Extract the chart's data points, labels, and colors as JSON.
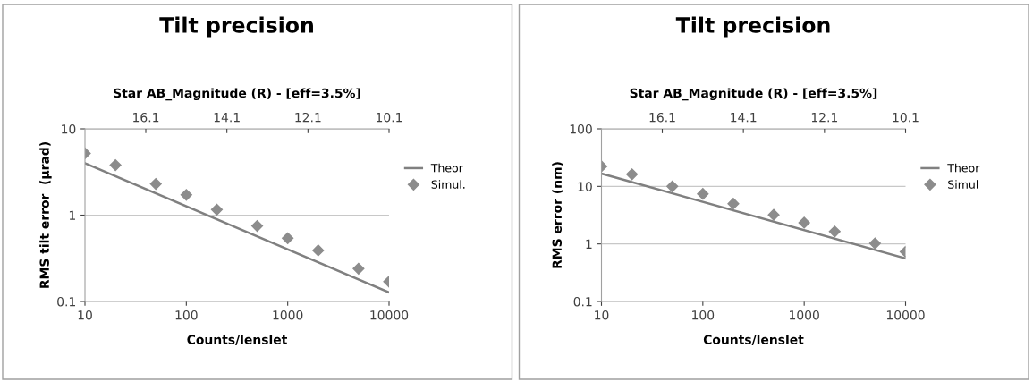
{
  "chart_data": [
    {
      "type": "line",
      "title": "Tilt precision",
      "x2label": "Star AB_Magnitude (R) - [eff=3.5%]",
      "xlabel": "Counts/lenslet",
      "ylabel": "RMS tilt error  (µrad)",
      "log": "xy",
      "grid": "y",
      "legend": "right",
      "xlim": [
        10,
        10000
      ],
      "xticks": [
        10,
        100,
        1000,
        10000
      ],
      "ylim": [
        0.1,
        10
      ],
      "yticks": [
        0.1,
        1,
        10
      ],
      "x2lim": [
        17.6,
        10.1
      ],
      "x2ticks": [
        16.1,
        14.1,
        12.1,
        10.1
      ],
      "series": [
        {
          "name": "Theor",
          "color": "#808080",
          "x": [
            10,
            10000
          ],
          "values": [
            4.0,
            0.127
          ]
        },
        {
          "name": "Simul.",
          "type": "scatter",
          "marker": "diamond",
          "color": "#8c8c8c",
          "x": [
            10,
            20,
            50,
            100,
            200,
            500,
            1000,
            2000,
            5000,
            10000
          ],
          "values": [
            5.2,
            3.8,
            2.3,
            1.72,
            1.16,
            0.75,
            0.54,
            0.39,
            0.24,
            0.17
          ]
        }
      ]
    },
    {
      "type": "line",
      "title": "Tilt precision",
      "x2label": "Star AB_Magnitude (R) - [eff=3.5%]",
      "xlabel": "Counts/lenslet",
      "ylabel": "RMS error (nm)",
      "log": "xy",
      "grid": "y",
      "legend": "right",
      "xlim": [
        10,
        10000
      ],
      "xticks": [
        10,
        100,
        1000,
        10000
      ],
      "ylim": [
        0.1,
        100
      ],
      "yticks": [
        0.1,
        1,
        10,
        100
      ],
      "x2lim": [
        17.6,
        10.1
      ],
      "x2ticks": [
        16.1,
        14.1,
        12.1,
        10.1
      ],
      "series": [
        {
          "name": "Theor",
          "color": "#808080",
          "x": [
            10,
            10000
          ],
          "values": [
            16.7,
            0.56
          ]
        },
        {
          "name": "Simul",
          "type": "scatter",
          "marker": "diamond",
          "color": "#8c8c8c",
          "x": [
            10,
            20,
            50,
            100,
            200,
            500,
            1000,
            2000,
            5000,
            10000
          ],
          "values": [
            22.3,
            16.2,
            10.0,
            7.4,
            5.0,
            3.2,
            2.34,
            1.64,
            1.02,
            0.73
          ]
        }
      ]
    }
  ]
}
